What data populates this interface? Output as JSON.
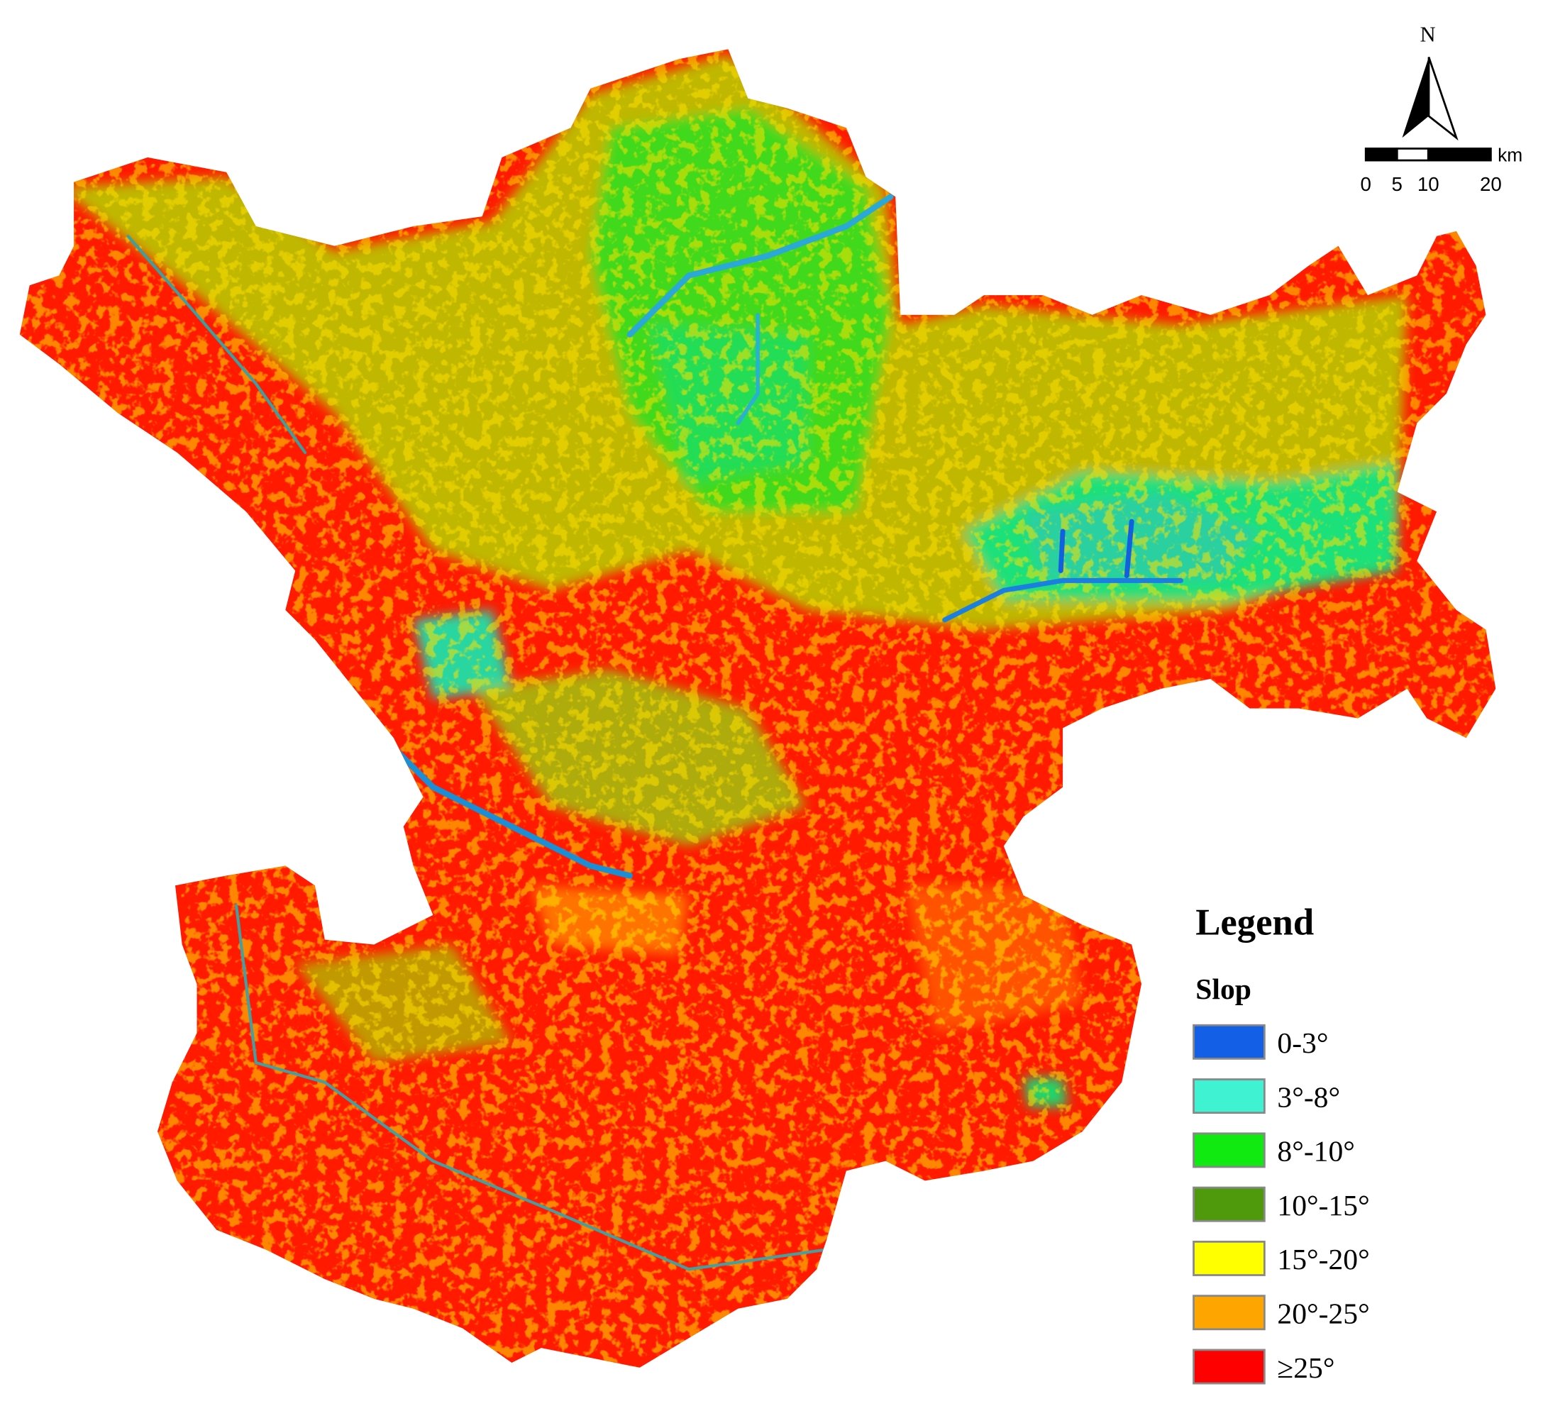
{
  "north_arrow": {
    "label": "N"
  },
  "scale_bar": {
    "unit": "km",
    "ticks": [
      0,
      5,
      10,
      20
    ]
  },
  "legend": {
    "title": "Legend",
    "subtitle": "Slop",
    "items": [
      {
        "label": "0-3°",
        "color": "#1360e6"
      },
      {
        "label": "3°-8°",
        "color": "#3ff2d2"
      },
      {
        "label": "8°-10°",
        "color": "#10ea10"
      },
      {
        "label": "10°-15°",
        "color": "#4f9a0c"
      },
      {
        "label": "15°-20°",
        "color": "#ffff00"
      },
      {
        "label": "20°-25°",
        "color": "#ffa500"
      },
      {
        "label": "≥25°",
        "color": "#ff0000"
      }
    ]
  }
}
